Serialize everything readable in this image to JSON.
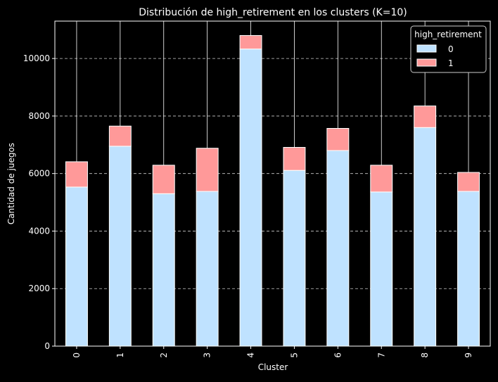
{
  "chart_data": {
    "type": "bar",
    "stacked": true,
    "title": "Distribución de high_retirement en los clusters (K=10)",
    "xlabel": "Cluster",
    "ylabel": "Cantidad de juegos",
    "categories": [
      "0",
      "1",
      "2",
      "3",
      "4",
      "5",
      "6",
      "7",
      "8",
      "9"
    ],
    "series": [
      {
        "name": "0",
        "color": "#bfe2ff",
        "values": [
          5530,
          6950,
          5300,
          5380,
          10330,
          6110,
          6800,
          5360,
          7600,
          5380
        ]
      },
      {
        "name": "1",
        "color": "#ff9999",
        "values": [
          880,
          700,
          990,
          1500,
          470,
          800,
          770,
          930,
          750,
          660
        ]
      }
    ],
    "ylim": [
      0,
      11300
    ],
    "yticks": [
      0,
      2000,
      4000,
      6000,
      8000,
      10000
    ],
    "grid": "horizontal dashed",
    "legend": {
      "title": "high_retirement",
      "placement": "top-right"
    },
    "colors": {
      "background": "#000000",
      "axes": "#ffffff",
      "bar_edge": "#ffffff",
      "grid": "#cccccc"
    }
  }
}
